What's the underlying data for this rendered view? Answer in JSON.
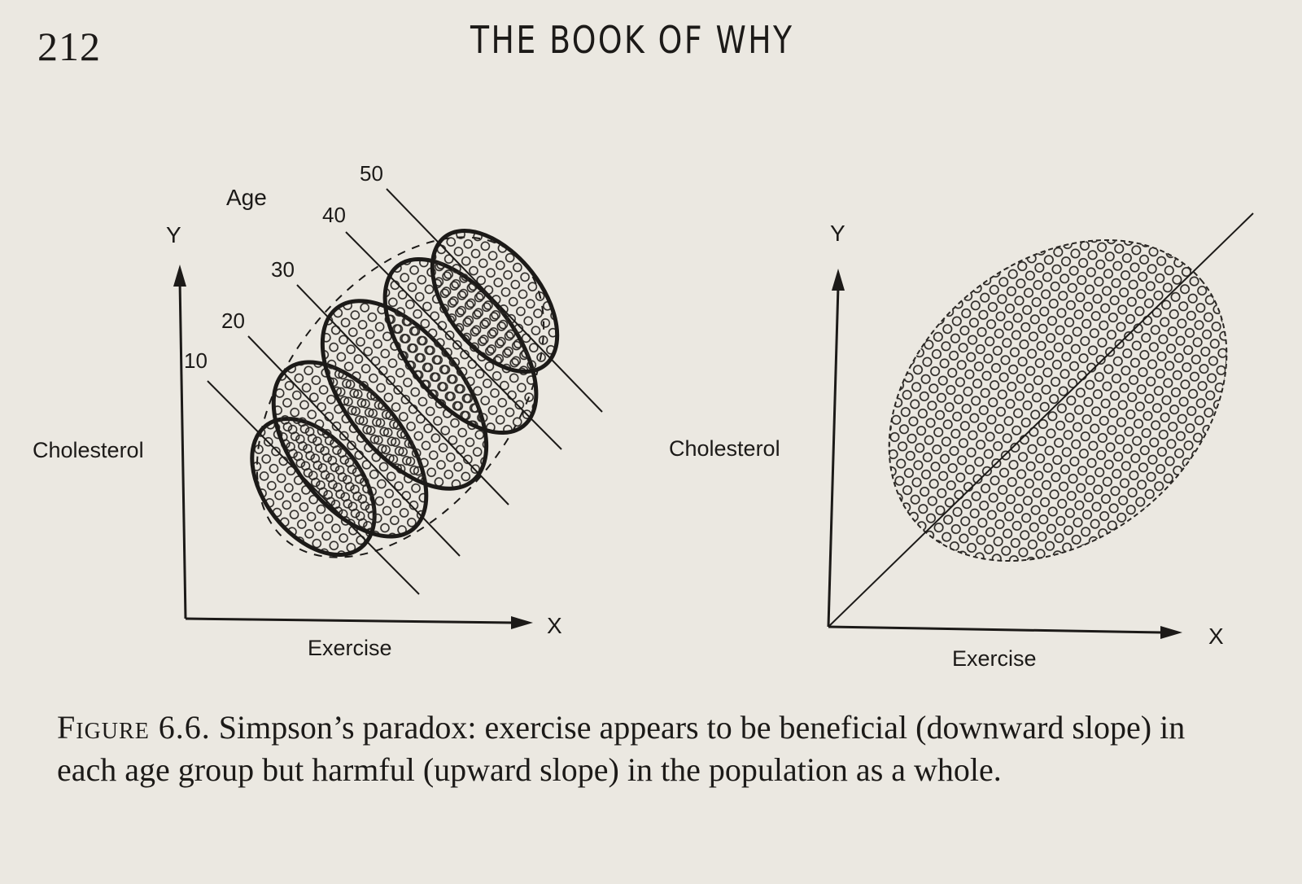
{
  "page": {
    "number": "212",
    "running_head": "THE BOOK OF WHY"
  },
  "figure": {
    "left_panel": {
      "y_axis_letter": "Y",
      "x_axis_letter": "X",
      "y_axis_label": "Cholesterol",
      "x_axis_label": "Exercise",
      "group_title": "Age",
      "age_groups": [
        "10",
        "20",
        "30",
        "40",
        "50"
      ]
    },
    "right_panel": {
      "y_axis_letter": "Y",
      "x_axis_letter": "X",
      "y_axis_label": "Cholesterol",
      "x_axis_label": "Exercise"
    }
  },
  "caption": {
    "label": "Figure 6.6.",
    "text": "Simpson’s paradox: exercise appears to be beneficial (downward slope) in each age group but harmful (upward slope) in the population as a whole."
  }
}
